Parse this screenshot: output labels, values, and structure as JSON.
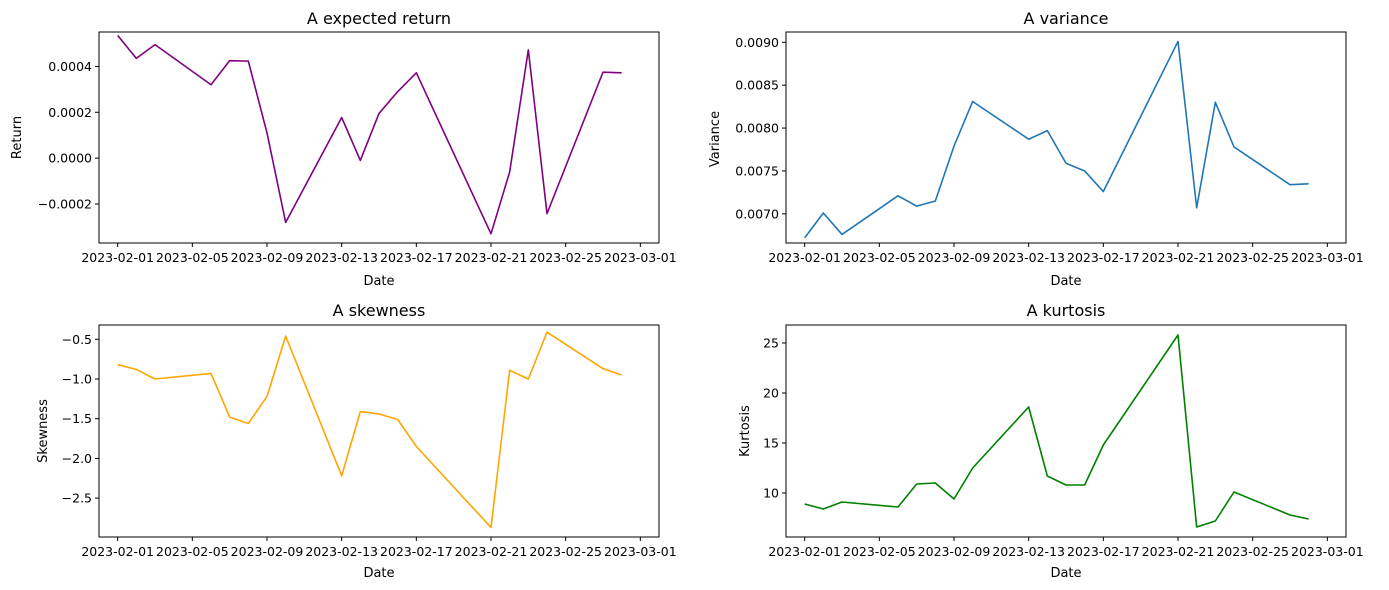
{
  "figure": {
    "background": "#ffffff"
  },
  "chart_data": [
    {
      "type": "line",
      "title": "A expected return",
      "xlabel": "Date",
      "ylabel": "Return",
      "color": "#800080",
      "grid": false,
      "xlim": [
        "2023-01-31",
        "2023-03-02"
      ],
      "ylim": [
        -0.00037,
        0.00055
      ],
      "x_ticks": [
        "2023-02-01",
        "2023-02-05",
        "2023-02-09",
        "2023-02-13",
        "2023-02-17",
        "2023-02-21",
        "2023-02-25",
        "2023-03-01"
      ],
      "y_ticks": [
        -0.0002,
        0.0,
        0.0002,
        0.0004
      ],
      "y_tick_labels": [
        "−0.0002",
        "0.0000",
        "0.0002",
        "0.0004"
      ],
      "series": [
        {
          "x": [
            "2023-02-01",
            "2023-02-02",
            "2023-02-03",
            "2023-02-06",
            "2023-02-07",
            "2023-02-08",
            "2023-02-09",
            "2023-02-10",
            "2023-02-13",
            "2023-02-14",
            "2023-02-15",
            "2023-02-16",
            "2023-02-17",
            "2023-02-21",
            "2023-02-22",
            "2023-02-23",
            "2023-02-24",
            "2023-02-27",
            "2023-02-28"
          ],
          "values": [
            0.000535,
            0.000435,
            0.000495,
            0.00032,
            0.000425,
            0.000423,
            0.00011,
            -0.00028,
            0.000177,
            -1e-05,
            0.000195,
            0.00029,
            0.000372,
            -0.00033,
            -6e-05,
            0.000472,
            -0.000242,
            0.000375,
            0.000372
          ]
        }
      ]
    },
    {
      "type": "line",
      "title": "A variance",
      "xlabel": "Date",
      "ylabel": "Variance",
      "color": "#1f77b4",
      "grid": false,
      "xlim": [
        "2023-01-31",
        "2023-03-02"
      ],
      "ylim": [
        0.00666,
        0.00912
      ],
      "x_ticks": [
        "2023-02-01",
        "2023-02-05",
        "2023-02-09",
        "2023-02-13",
        "2023-02-17",
        "2023-02-21",
        "2023-02-25",
        "2023-03-01"
      ],
      "y_ticks": [
        0.007,
        0.0075,
        0.008,
        0.0085,
        0.009
      ],
      "y_tick_labels": [
        "0.0070",
        "0.0075",
        "0.0080",
        "0.0085",
        "0.0090"
      ],
      "series": [
        {
          "x": [
            "2023-02-01",
            "2023-02-02",
            "2023-02-03",
            "2023-02-06",
            "2023-02-07",
            "2023-02-08",
            "2023-02-09",
            "2023-02-10",
            "2023-02-13",
            "2023-02-14",
            "2023-02-15",
            "2023-02-16",
            "2023-02-17",
            "2023-02-21",
            "2023-02-22",
            "2023-02-23",
            "2023-02-24",
            "2023-02-27",
            "2023-02-28"
          ],
          "values": [
            0.00672,
            0.00701,
            0.00676,
            0.00721,
            0.00709,
            0.00715,
            0.00779,
            0.00831,
            0.00787,
            0.00797,
            0.00759,
            0.0075,
            0.00726,
            0.00901,
            0.00707,
            0.0083,
            0.00778,
            0.00734,
            0.00735
          ]
        }
      ]
    },
    {
      "type": "line",
      "title": "A skewness",
      "xlabel": "Date",
      "ylabel": "Skewness",
      "color": "#ffa500",
      "grid": false,
      "xlim": [
        "2023-01-31",
        "2023-03-02"
      ],
      "ylim": [
        -2.99,
        -0.32
      ],
      "x_ticks": [
        "2023-02-01",
        "2023-02-05",
        "2023-02-09",
        "2023-02-13",
        "2023-02-17",
        "2023-02-21",
        "2023-02-25",
        "2023-03-01"
      ],
      "y_ticks": [
        -2.5,
        -2.0,
        -1.5,
        -1.0,
        -0.5
      ],
      "y_tick_labels": [
        "−2.5",
        "−2.0",
        "−1.5",
        "−1.0",
        "−0.5"
      ],
      "series": [
        {
          "x": [
            "2023-02-01",
            "2023-02-02",
            "2023-02-03",
            "2023-02-06",
            "2023-02-07",
            "2023-02-08",
            "2023-02-09",
            "2023-02-10",
            "2023-02-13",
            "2023-02-14",
            "2023-02-15",
            "2023-02-16",
            "2023-02-17",
            "2023-02-21",
            "2023-02-22",
            "2023-02-23",
            "2023-02-24",
            "2023-02-27",
            "2023-02-28"
          ],
          "values": [
            -0.82,
            -0.88,
            -1.0,
            -0.93,
            -1.48,
            -1.56,
            -1.22,
            -0.46,
            -2.22,
            -1.41,
            -1.44,
            -1.51,
            -1.85,
            -2.87,
            -0.89,
            -1.0,
            -0.41,
            -0.87,
            -0.95
          ]
        }
      ]
    },
    {
      "type": "line",
      "title": "A kurtosis",
      "xlabel": "Date",
      "ylabel": "Kurtosis",
      "color": "#008000",
      "grid": false,
      "xlim": [
        "2023-01-31",
        "2023-03-02"
      ],
      "ylim": [
        5.6,
        26.8
      ],
      "x_ticks": [
        "2023-02-01",
        "2023-02-05",
        "2023-02-09",
        "2023-02-13",
        "2023-02-17",
        "2023-02-21",
        "2023-02-25",
        "2023-03-01"
      ],
      "y_ticks": [
        10,
        15,
        20,
        25
      ],
      "y_tick_labels": [
        "10",
        "15",
        "20",
        "25"
      ],
      "series": [
        {
          "x": [
            "2023-02-01",
            "2023-02-02",
            "2023-02-03",
            "2023-02-06",
            "2023-02-07",
            "2023-02-08",
            "2023-02-09",
            "2023-02-10",
            "2023-02-13",
            "2023-02-14",
            "2023-02-15",
            "2023-02-16",
            "2023-02-17",
            "2023-02-21",
            "2023-02-22",
            "2023-02-23",
            "2023-02-24",
            "2023-02-27",
            "2023-02-28"
          ],
          "values": [
            8.9,
            8.4,
            9.1,
            8.6,
            10.9,
            11.0,
            9.4,
            12.5,
            18.6,
            11.7,
            10.8,
            10.8,
            14.8,
            25.8,
            6.6,
            7.2,
            10.1,
            7.8,
            7.4
          ]
        }
      ]
    }
  ]
}
